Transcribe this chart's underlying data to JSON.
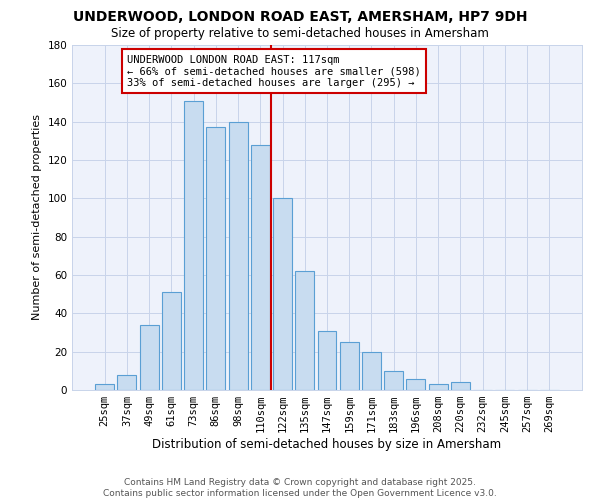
{
  "title": "UNDERWOOD, LONDON ROAD EAST, AMERSHAM, HP7 9DH",
  "subtitle": "Size of property relative to semi-detached houses in Amersham",
  "xlabel": "Distribution of semi-detached houses by size in Amersham",
  "ylabel": "Number of semi-detached properties",
  "bar_color": "#c8dcf0",
  "bar_edge_color": "#5a9fd4",
  "background_color": "#eef2fb",
  "grid_color": "#c8d4ea",
  "categories": [
    "25sqm",
    "37sqm",
    "49sqm",
    "61sqm",
    "73sqm",
    "86sqm",
    "98sqm",
    "110sqm",
    "122sqm",
    "135sqm",
    "147sqm",
    "159sqm",
    "171sqm",
    "183sqm",
    "196sqm",
    "208sqm",
    "220sqm",
    "232sqm",
    "245sqm",
    "257sqm",
    "269sqm"
  ],
  "values": [
    3,
    8,
    34,
    51,
    151,
    137,
    140,
    128,
    100,
    62,
    31,
    25,
    20,
    10,
    6,
    3,
    4,
    0,
    0,
    0,
    0
  ],
  "vline_x": 7.5,
  "vline_color": "#cc0000",
  "annotation_line1": "UNDERWOOD LONDON ROAD EAST: 117sqm",
  "annotation_line2": "← 66% of semi-detached houses are smaller (598)",
  "annotation_line3": "33% of semi-detached houses are larger (295) →",
  "annotation_box_edge": "#cc0000",
  "ylim": [
    0,
    180
  ],
  "yticks": [
    0,
    20,
    40,
    60,
    80,
    100,
    120,
    140,
    160,
    180
  ],
  "footer_text": "Contains HM Land Registry data © Crown copyright and database right 2025.\nContains public sector information licensed under the Open Government Licence v3.0.",
  "title_fontsize": 10,
  "subtitle_fontsize": 8.5,
  "xlabel_fontsize": 8.5,
  "ylabel_fontsize": 8,
  "tick_fontsize": 7.5,
  "annotation_fontsize": 7.5,
  "footer_fontsize": 6.5
}
